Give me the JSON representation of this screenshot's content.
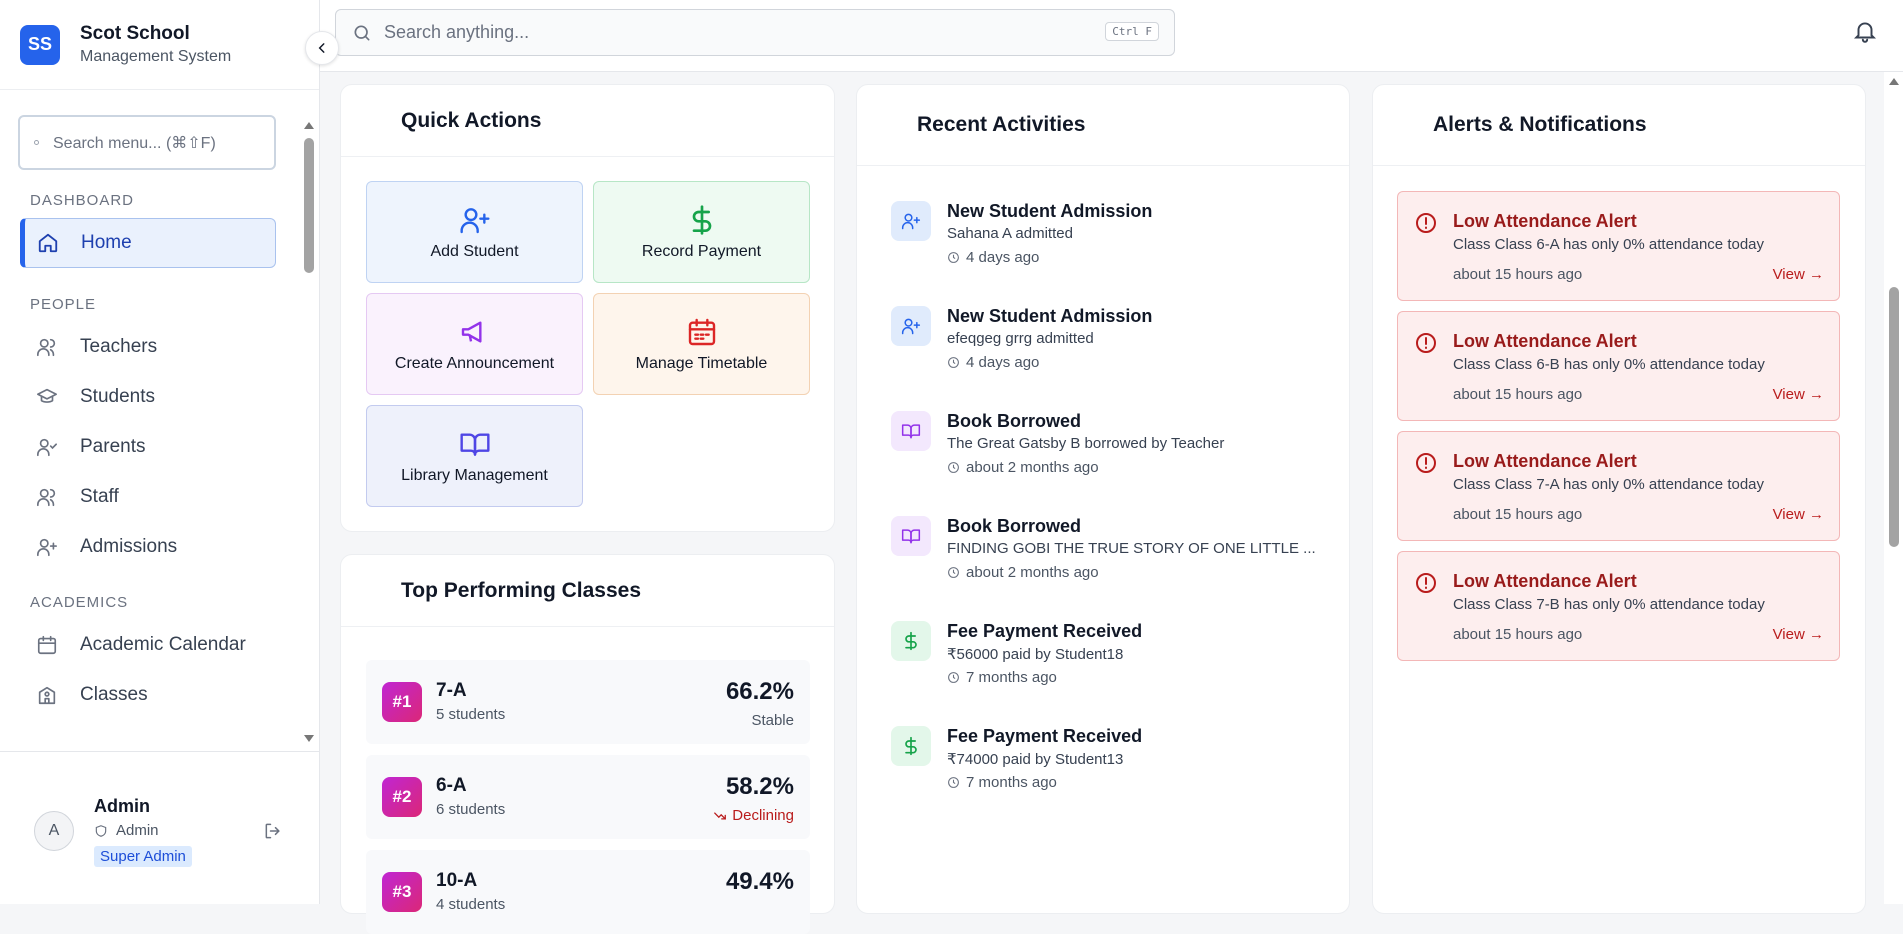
{
  "brand": {
    "logo": "SS",
    "name": "Scot School",
    "subtitle": "Management System"
  },
  "sidebar": {
    "search_placeholder": "Search menu... (⌘⇧F)",
    "sections": [
      {
        "label": "DASHBOARD",
        "items": [
          {
            "label": "Home",
            "icon": "home-icon",
            "active": true
          }
        ]
      },
      {
        "label": "PEOPLE",
        "items": [
          {
            "label": "Teachers",
            "icon": "users-icon"
          },
          {
            "label": "Students",
            "icon": "graduation-cap-icon"
          },
          {
            "label": "Parents",
            "icon": "user-check-icon"
          },
          {
            "label": "Staff",
            "icon": "users-icon"
          },
          {
            "label": "Admissions",
            "icon": "user-plus-icon"
          }
        ]
      },
      {
        "label": "ACADEMICS",
        "items": [
          {
            "label": "Academic Calendar",
            "icon": "calendar-icon"
          },
          {
            "label": "Classes",
            "icon": "school-icon"
          }
        ]
      }
    ]
  },
  "user": {
    "avatar": "A",
    "name": "Admin",
    "role": "Admin",
    "badge": "Super Admin"
  },
  "topbar": {
    "search_placeholder": "Search anything...",
    "shortcut": "Ctrl F"
  },
  "quick_actions": {
    "title": "Quick Actions",
    "items": [
      {
        "label": "Add Student",
        "icon": "user-plus-icon"
      },
      {
        "label": "Record Payment",
        "icon": "dollar-icon"
      },
      {
        "label": "Create Announcement",
        "icon": "megaphone-icon"
      },
      {
        "label": "Manage Timetable",
        "icon": "calendar-icon"
      },
      {
        "label": "Library Management",
        "icon": "book-open-icon"
      }
    ]
  },
  "top_classes": {
    "title": "Top Performing Classes",
    "rows": [
      {
        "rank": "#1",
        "class": "7-A",
        "students": "5 students",
        "pct": "66.2%",
        "trend": "Stable"
      },
      {
        "rank": "#2",
        "class": "6-A",
        "students": "6 students",
        "pct": "58.2%",
        "trend": "Declining"
      },
      {
        "rank": "#3",
        "class": "10-A",
        "students": "4 students",
        "pct": "49.4%",
        "trend": ""
      }
    ]
  },
  "activities": {
    "title": "Recent Activities",
    "items": [
      {
        "title": "New Student Admission",
        "desc": "Sahana A admitted",
        "time": "4 days ago",
        "icon": "user-plus-icon"
      },
      {
        "title": "New Student Admission",
        "desc": "efeqgeg grrg admitted",
        "time": "4 days ago",
        "icon": "user-plus-icon"
      },
      {
        "title": "Book Borrowed",
        "desc": "The Great Gatsby B borrowed by Teacher",
        "time": "about 2 months ago",
        "icon": "book-open-icon"
      },
      {
        "title": "Book Borrowed",
        "desc": "FINDING GOBI THE TRUE STORY OF ONE LITTLE ...",
        "time": "about 2 months ago",
        "icon": "book-open-icon"
      },
      {
        "title": "Fee Payment Received",
        "desc": "₹56000 paid by Student18",
        "time": "7 months ago",
        "icon": "dollar-icon"
      },
      {
        "title": "Fee Payment Received",
        "desc": "₹74000 paid by Student13",
        "time": "7 months ago",
        "icon": "dollar-icon"
      }
    ]
  },
  "alerts": {
    "title": "Alerts & Notifications",
    "items": [
      {
        "title": "Low Attendance Alert",
        "desc": "Class Class 6-A has only 0% attendance today",
        "time": "about 15 hours ago",
        "action": "View →"
      },
      {
        "title": "Low Attendance Alert",
        "desc": "Class Class 6-B has only 0% attendance today",
        "time": "about 15 hours ago",
        "action": "View →"
      },
      {
        "title": "Low Attendance Alert",
        "desc": "Class Class 7-A has only 0% attendance today",
        "time": "about 15 hours ago",
        "action": "View →"
      },
      {
        "title": "Low Attendance Alert",
        "desc": "Class Class 7-B has only 0% attendance today",
        "time": "about 15 hours ago",
        "action": "View →"
      }
    ]
  },
  "colors": {
    "accent": "#2563eb",
    "alert": "#b91c1c",
    "success": "#16a34a",
    "purple": "#9333ea"
  }
}
